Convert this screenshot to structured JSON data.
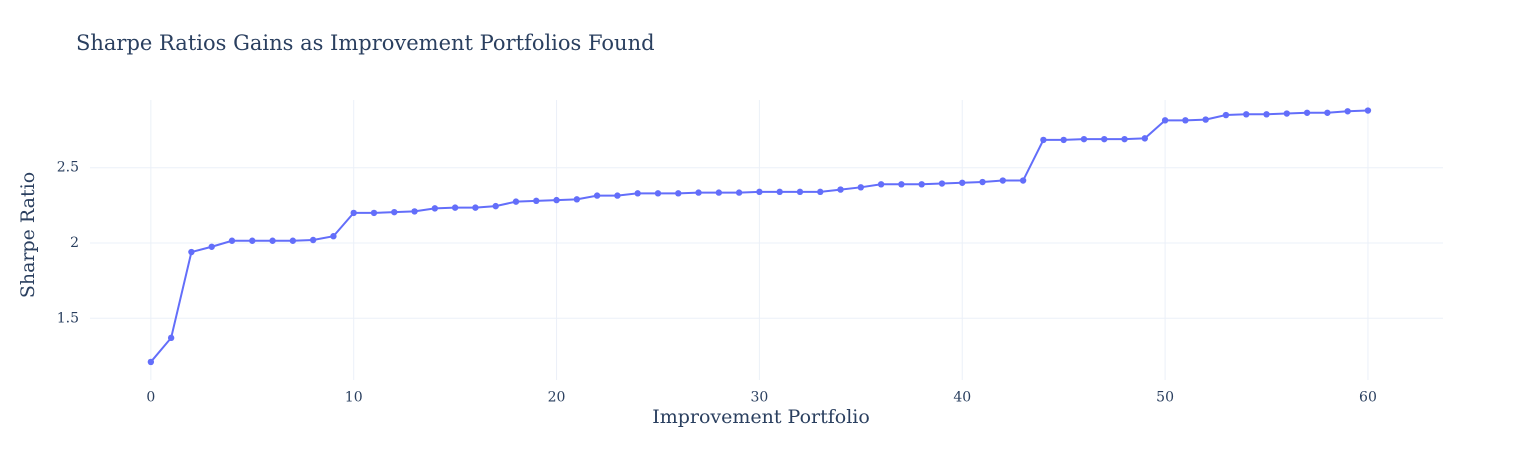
{
  "chart_data": {
    "type": "line",
    "title": "Sharpe Ratios Gains as Improvement Portfolios Found",
    "xlabel": "Improvement Portfolio",
    "ylabel": "Sharpe Ratio",
    "xlim": [
      -3,
      63.7
    ],
    "ylim": [
      1.09,
      2.95
    ],
    "xticks": [
      0,
      10,
      20,
      30,
      40,
      50,
      60
    ],
    "yticks": [
      1.5,
      2,
      2.5
    ],
    "ytick_labels": [
      "1.5",
      "2",
      "2.5"
    ],
    "grid": true,
    "series": [
      {
        "color": "#636efa",
        "x": [
          0,
          1,
          2,
          3,
          4,
          5,
          6,
          7,
          8,
          9,
          10,
          11,
          12,
          13,
          14,
          15,
          16,
          17,
          18,
          19,
          20,
          21,
          22,
          23,
          24,
          25,
          26,
          27,
          28,
          29,
          30,
          31,
          32,
          33,
          34,
          35,
          36,
          37,
          38,
          39,
          40,
          41,
          42,
          43,
          44,
          45,
          46,
          47,
          48,
          49,
          50,
          51,
          52,
          53,
          54,
          55,
          56,
          57,
          58,
          59,
          60
        ],
        "y": [
          1.21,
          1.37,
          1.94,
          1.975,
          2.015,
          2.015,
          2.015,
          2.015,
          2.02,
          2.045,
          2.2,
          2.2,
          2.205,
          2.21,
          2.23,
          2.235,
          2.235,
          2.245,
          2.275,
          2.28,
          2.285,
          2.29,
          2.315,
          2.315,
          2.33,
          2.33,
          2.33,
          2.335,
          2.335,
          2.335,
          2.34,
          2.34,
          2.34,
          2.34,
          2.355,
          2.37,
          2.39,
          2.39,
          2.39,
          2.395,
          2.4,
          2.405,
          2.415,
          2.415,
          2.685,
          2.685,
          2.69,
          2.69,
          2.69,
          2.695,
          2.815,
          2.815,
          2.82,
          2.85,
          2.855,
          2.855,
          2.86,
          2.865,
          2.865,
          2.875,
          2.88
        ]
      }
    ]
  }
}
